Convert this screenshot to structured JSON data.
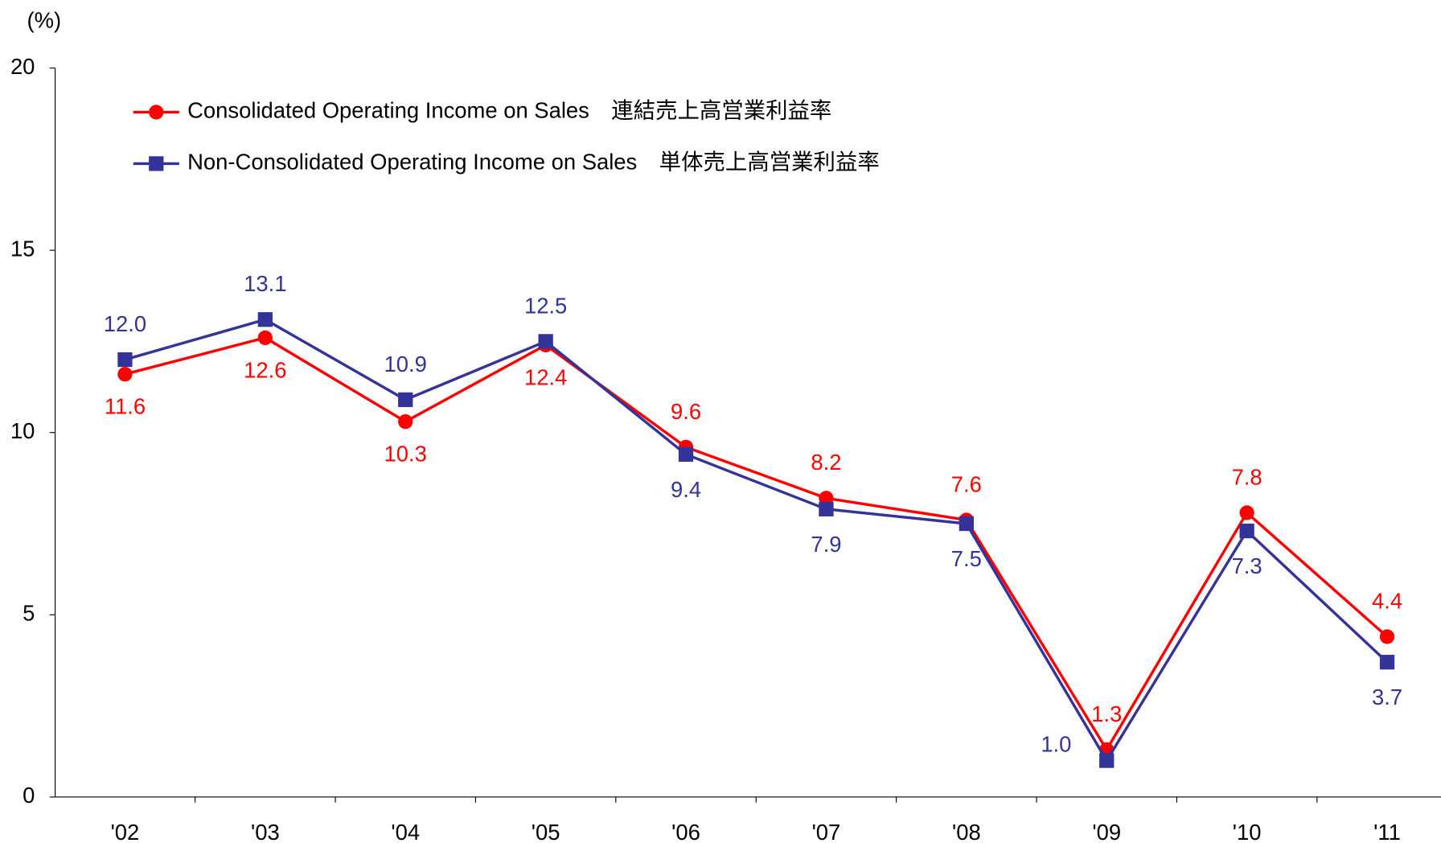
{
  "chart_data": {
    "type": "line",
    "y_axis_label": "(%)",
    "categories": [
      "'02",
      "'03",
      "'04",
      "'05",
      "'06",
      "'07",
      "'08",
      "'09",
      "'10",
      "'11"
    ],
    "series": [
      {
        "name": "Consolidated Operating Income on Sales　連結売上高営業利益率",
        "color": "#ff0000",
        "marker": "circle",
        "values": [
          11.6,
          12.6,
          10.3,
          12.4,
          9.6,
          8.2,
          7.6,
          1.3,
          7.8,
          4.4
        ],
        "value_labels": [
          "11.6",
          "12.6",
          "10.3",
          "12.4",
          "9.6",
          "8.2",
          "7.6",
          "1.3",
          "7.8",
          "4.4"
        ]
      },
      {
        "name": "Non-Consolidated Operating Income on Sales　単体売上高営業利益率",
        "color": "#333399",
        "marker": "square",
        "values": [
          12.0,
          13.1,
          10.9,
          12.5,
          9.4,
          7.9,
          7.5,
          1.0,
          7.3,
          3.7
        ],
        "value_labels": [
          "12.0",
          "13.1",
          "10.9",
          "12.5",
          "9.4",
          "7.9",
          "7.5",
          "1.0",
          "7.3",
          "3.7"
        ]
      }
    ],
    "ylim": [
      0,
      20
    ],
    "yticks": [
      0,
      5,
      10,
      15,
      20
    ],
    "grid": false
  }
}
